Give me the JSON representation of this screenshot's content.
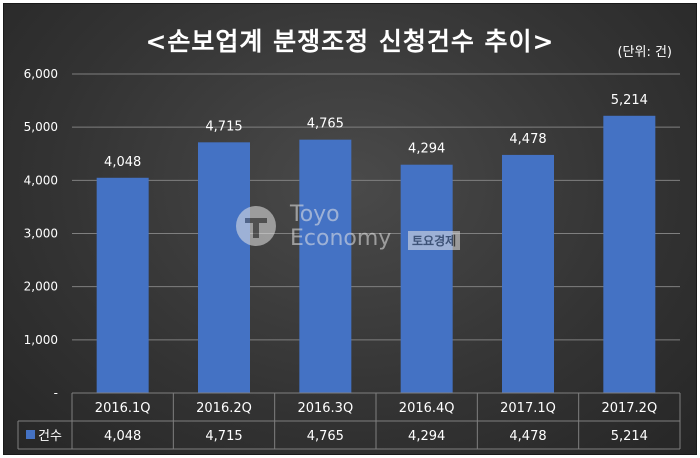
{
  "title": "<손보업계 분쟁조정 신청건수 추이>",
  "unit_label": "(단위: 건)",
  "watermark": {
    "line1": "Toyo",
    "line2": "Economy",
    "badge": "토요경제"
  },
  "colors": {
    "bar": "#4472c4",
    "text": "#ffffff",
    "grid": "#7f7f7f"
  },
  "chart_data": {
    "type": "bar",
    "categories": [
      "2016.1Q",
      "2016.2Q",
      "2016.3Q",
      "2016.4Q",
      "2017.1Q",
      "2017.2Q"
    ],
    "series": [
      {
        "name": "건수",
        "values": [
          4048,
          4715,
          4765,
          4294,
          4478,
          5214
        ]
      }
    ],
    "data_labels": [
      "4,048",
      "4,715",
      "4,765",
      "4,294",
      "4,478",
      "5,214"
    ],
    "y_ticks": [
      "-",
      "1,000",
      "2,000",
      "3,000",
      "4,000",
      "5,000",
      "6,000"
    ],
    "ylim": [
      0,
      6000
    ],
    "grid": true,
    "data_table": true
  }
}
